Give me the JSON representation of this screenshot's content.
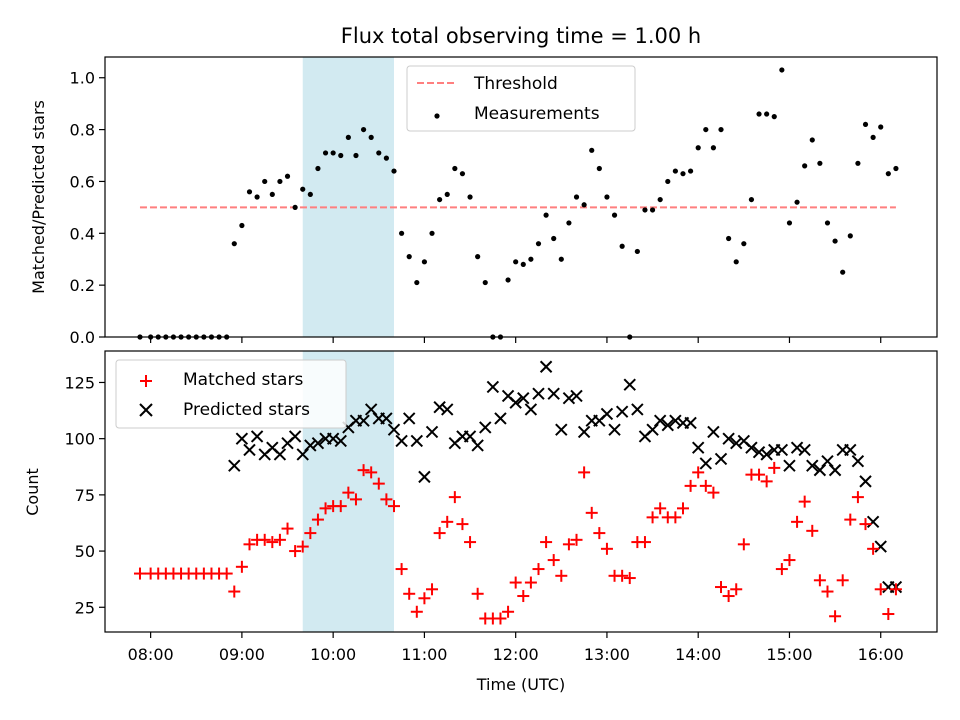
{
  "chart_data": [
    {
      "type": "scatter",
      "title": "Flux total observing time = 1.00 h",
      "xlabel": "",
      "ylabel": "Matched/Predicted stars",
      "xlim": [
        "07:30",
        "16:37"
      ],
      "ylim": [
        0,
        1.08
      ],
      "yticks": [
        "0.0",
        "0.2",
        "0.4",
        "0.6",
        "0.8",
        "1.0"
      ],
      "highlight_span": [
        "09:40",
        "10:40"
      ],
      "highlight_color": "#add8e6",
      "threshold": {
        "name": "Threshold",
        "y": 0.5,
        "x": [
          "07:53",
          "16:10"
        ],
        "color": "#ff7f7f",
        "style": "dashed"
      },
      "series": [
        {
          "name": "Measurements",
          "color": "#000000",
          "marker": "dot",
          "x": [
            "07:53",
            "08:00",
            "08:05",
            "08:10",
            "08:15",
            "08:20",
            "08:25",
            "08:30",
            "08:35",
            "08:40",
            "08:45",
            "08:50",
            "08:55",
            "09:00",
            "09:05",
            "09:10",
            "09:15",
            "09:20",
            "09:25",
            "09:30",
            "09:35",
            "09:40",
            "09:45",
            "09:50",
            "09:55",
            "10:00",
            "10:05",
            "10:10",
            "10:15",
            "10:20",
            "10:25",
            "10:30",
            "10:35",
            "10:40",
            "10:45",
            "10:50",
            "10:55",
            "11:00",
            "11:05",
            "11:10",
            "11:15",
            "11:20",
            "11:25",
            "11:30",
            "11:35",
            "11:40",
            "11:45",
            "11:50",
            "11:55",
            "12:00",
            "12:05",
            "12:10",
            "12:15",
            "12:20",
            "12:25",
            "12:30",
            "12:35",
            "12:40",
            "12:45",
            "12:50",
            "12:55",
            "13:00",
            "13:05",
            "13:10",
            "13:15",
            "13:20",
            "13:25",
            "13:30",
            "13:35",
            "13:40",
            "13:45",
            "13:50",
            "13:55",
            "14:00",
            "14:05",
            "14:10",
            "14:15",
            "14:20",
            "14:25",
            "14:30",
            "14:35",
            "14:40",
            "14:45",
            "14:50",
            "14:55",
            "15:00",
            "15:05",
            "15:10",
            "15:15",
            "15:20",
            "15:25",
            "15:30",
            "15:35",
            "15:40",
            "15:45",
            "15:50",
            "15:55",
            "16:00",
            "16:05",
            "16:10"
          ],
          "y": [
            0.0,
            0.0,
            0.0,
            0.0,
            0.0,
            0.0,
            0.0,
            0.0,
            0.0,
            0.0,
            0.0,
            0.0,
            0.36,
            0.43,
            0.56,
            0.54,
            0.6,
            0.55,
            0.6,
            0.62,
            0.5,
            0.57,
            0.55,
            0.65,
            0.71,
            0.71,
            0.7,
            0.77,
            0.7,
            0.8,
            0.77,
            0.71,
            0.69,
            0.64,
            0.4,
            0.31,
            0.21,
            0.29,
            0.4,
            0.53,
            0.55,
            0.65,
            0.63,
            0.54,
            0.31,
            0.21,
            0.0,
            0.0,
            0.22,
            0.29,
            0.28,
            0.3,
            0.36,
            0.47,
            0.38,
            0.3,
            0.44,
            0.54,
            0.51,
            0.72,
            0.65,
            0.54,
            0.47,
            0.35,
            0.0,
            0.33,
            0.49,
            0.49,
            0.53,
            0.6,
            0.64,
            0.63,
            0.64,
            0.73,
            0.8,
            0.73,
            0.8,
            0.38,
            0.29,
            0.36,
            0.53,
            0.86,
            0.86,
            0.85,
            1.03,
            0.44,
            0.52,
            0.66,
            0.76,
            0.67,
            0.44,
            0.37,
            0.25,
            0.39,
            0.67,
            0.82,
            0.77,
            0.81,
            0.63,
            0.65
          ]
        }
      ],
      "legend": {
        "position": "top-center",
        "entries": [
          "Threshold",
          "Measurements"
        ]
      }
    },
    {
      "type": "scatter",
      "title": "",
      "xlabel": "Time (UTC)",
      "ylabel": "Count",
      "xlim": [
        "07:30",
        "16:37"
      ],
      "ylim": [
        14,
        139
      ],
      "yticks": [
        "25",
        "50",
        "75",
        "100",
        "125"
      ],
      "xticks": [
        "08:00",
        "09:00",
        "10:00",
        "11:00",
        "12:00",
        "13:00",
        "14:00",
        "15:00",
        "16:00"
      ],
      "highlight_span": [
        "09:40",
        "10:40"
      ],
      "highlight_color": "#add8e6",
      "series": [
        {
          "name": "Matched stars",
          "color": "#ff0000",
          "marker": "plus",
          "x": [
            "07:53",
            "08:00",
            "08:05",
            "08:10",
            "08:15",
            "08:20",
            "08:25",
            "08:30",
            "08:35",
            "08:40",
            "08:45",
            "08:50",
            "08:55",
            "09:00",
            "09:05",
            "09:10",
            "09:15",
            "09:20",
            "09:25",
            "09:30",
            "09:35",
            "09:40",
            "09:45",
            "09:50",
            "09:55",
            "10:00",
            "10:05",
            "10:10",
            "10:15",
            "10:20",
            "10:25",
            "10:30",
            "10:35",
            "10:40",
            "10:45",
            "10:50",
            "10:55",
            "11:00",
            "11:05",
            "11:10",
            "11:15",
            "11:20",
            "11:25",
            "11:30",
            "11:35",
            "11:40",
            "11:45",
            "11:50",
            "11:55",
            "12:00",
            "12:05",
            "12:10",
            "12:15",
            "12:20",
            "12:25",
            "12:30",
            "12:35",
            "12:40",
            "12:45",
            "12:50",
            "12:55",
            "13:00",
            "13:05",
            "13:10",
            "13:15",
            "13:20",
            "13:25",
            "13:30",
            "13:35",
            "13:40",
            "13:45",
            "13:50",
            "13:55",
            "14:00",
            "14:05",
            "14:10",
            "14:15",
            "14:20",
            "14:25",
            "14:30",
            "14:35",
            "14:40",
            "14:45",
            "14:50",
            "14:55",
            "15:00",
            "15:05",
            "15:10",
            "15:15",
            "15:20",
            "15:25",
            "15:30",
            "15:35",
            "15:40",
            "15:45",
            "15:50",
            "15:55",
            "16:00",
            "16:05",
            "16:10"
          ],
          "y": [
            40,
            40,
            40,
            40,
            40,
            40,
            40,
            40,
            40,
            40,
            40,
            40,
            32,
            43,
            53,
            55,
            55,
            54,
            55,
            60,
            50,
            52,
            58,
            64,
            69,
            70,
            70,
            76,
            73,
            86,
            85,
            80,
            73,
            70,
            42,
            31,
            23,
            29,
            33,
            58,
            63,
            74,
            62,
            54,
            31,
            20,
            20,
            20,
            23,
            36,
            30,
            36,
            42,
            54,
            46,
            39,
            53,
            55,
            85,
            67,
            58,
            51,
            39,
            39,
            38,
            54,
            54,
            65,
            69,
            65,
            65,
            69,
            79,
            85,
            79,
            76,
            34,
            30,
            33,
            53,
            84,
            84,
            81,
            87,
            42,
            46,
            63,
            72,
            59,
            37,
            32,
            21,
            37,
            64,
            74,
            62,
            51,
            33,
            22,
            33
          ]
        },
        {
          "name": "Predicted stars",
          "color": "#000000",
          "marker": "x",
          "x": [
            "08:55",
            "09:00",
            "09:05",
            "09:10",
            "09:15",
            "09:20",
            "09:25",
            "09:30",
            "09:35",
            "09:40",
            "09:45",
            "09:50",
            "09:55",
            "10:00",
            "10:05",
            "10:10",
            "10:15",
            "10:20",
            "10:25",
            "10:30",
            "10:35",
            "10:40",
            "10:45",
            "10:50",
            "10:55",
            "11:00",
            "11:05",
            "11:10",
            "11:15",
            "11:20",
            "11:25",
            "11:30",
            "11:35",
            "11:40",
            "11:45",
            "11:50",
            "11:55",
            "12:00",
            "12:05",
            "12:10",
            "12:15",
            "12:20",
            "12:25",
            "12:30",
            "12:35",
            "12:40",
            "12:45",
            "12:50",
            "12:55",
            "13:00",
            "13:05",
            "13:10",
            "13:15",
            "13:20",
            "13:25",
            "13:30",
            "13:35",
            "13:40",
            "13:45",
            "13:50",
            "13:55",
            "14:00",
            "14:05",
            "14:10",
            "14:15",
            "14:20",
            "14:25",
            "14:30",
            "14:35",
            "14:40",
            "14:45",
            "14:50",
            "14:55",
            "15:00",
            "15:05",
            "15:10",
            "15:15",
            "15:20",
            "15:25",
            "15:30",
            "15:35",
            "15:40",
            "15:45",
            "15:50",
            "15:55",
            "16:00",
            "16:05",
            "16:10"
          ],
          "y": [
            88,
            100,
            95,
            101,
            93,
            96,
            93,
            98,
            101,
            93,
            97,
            98,
            100,
            100,
            99,
            105,
            108,
            108,
            113,
            109,
            109,
            104,
            99,
            109,
            99,
            83,
            103,
            114,
            113,
            98,
            101,
            101,
            97,
            105,
            123,
            109,
            119,
            116,
            118,
            113,
            120,
            132,
            120,
            104,
            118,
            119,
            103,
            108,
            108,
            111,
            104,
            112,
            124,
            113,
            101,
            104,
            108,
            106,
            108,
            107,
            107,
            96,
            89,
            103,
            91,
            100,
            98,
            99,
            96,
            94,
            93,
            95,
            95,
            88,
            96,
            95,
            88,
            86,
            90,
            86,
            95,
            95,
            90,
            81,
            63,
            52,
            34,
            34
          ]
        }
      ],
      "legend": {
        "position": "top-left",
        "entries": [
          "Matched stars",
          "Predicted stars"
        ]
      }
    }
  ]
}
